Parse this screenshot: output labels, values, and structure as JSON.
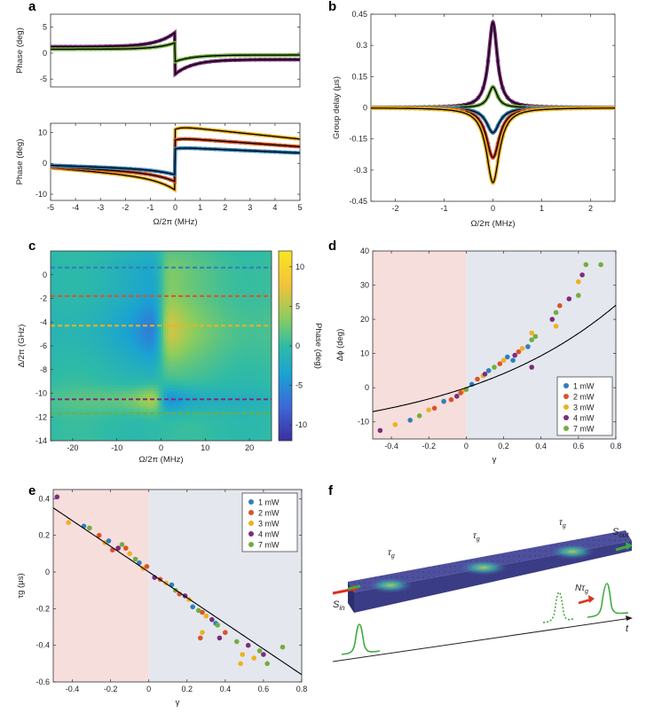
{
  "panel_labels": {
    "a": "a",
    "b": "b",
    "c": "c",
    "d": "d",
    "e": "e",
    "f": "f"
  },
  "colors": {
    "blue": "#2f7fb8",
    "red": "#d9542a",
    "orange": "#ecb21f",
    "purple": "#7b2d7c",
    "green": "#72ad3f",
    "fit": "#000000",
    "shade_red": "#f6dedc",
    "shade_blue": "#e5e7ef",
    "slab": "#4e509e"
  },
  "chart_data": [
    {
      "id": "a_top",
      "type": "line",
      "ylabel": "Phase (deg)",
      "xlim": [
        -5,
        5
      ],
      "ylim": [
        -6.5,
        7.5
      ],
      "yticks": [
        -5,
        0,
        5
      ],
      "series": [
        {
          "color": "purple",
          "amp": 0.62,
          "offset": 0.0
        },
        {
          "color": "green",
          "amp": 0.28,
          "offset": 0.2
        }
      ]
    },
    {
      "id": "a_bottom",
      "type": "line",
      "ylabel": "Phase (deg)",
      "xlabel": "Ω/2π (MHz)",
      "xlim": [
        -5,
        5
      ],
      "ylim": [
        -12,
        13
      ],
      "xticks": [
        -5,
        -4,
        -3,
        -2,
        -1,
        0,
        1,
        2,
        3,
        4,
        5
      ],
      "yticks": [
        -10,
        0,
        10
      ],
      "series": [
        {
          "color": "orange",
          "amp": -1.05,
          "offset": 0.0
        },
        {
          "color": "red",
          "amp": -0.72,
          "offset": 0.0
        },
        {
          "color": "blue",
          "amp": -0.45,
          "offset": 0.0
        }
      ]
    },
    {
      "id": "b",
      "type": "line",
      "ylabel": "Group delay (μs)",
      "xlabel": "Ω/2π (MHz)",
      "xlim": [
        -2.5,
        2.5
      ],
      "ylim": [
        -0.45,
        0.45
      ],
      "xticks": [
        -2,
        -1,
        0,
        1,
        2
      ],
      "yticks": [
        -0.45,
        -0.3,
        -0.15,
        0,
        0.15,
        0.3,
        0.45
      ],
      "ytick_labels": [
        "-0.45",
        "-0.3",
        "-0.15",
        "0",
        "0.15",
        "0.3",
        "0.45"
      ],
      "series": [
        {
          "color": "purple",
          "peak": 0.41
        },
        {
          "color": "green",
          "peak": 0.1
        },
        {
          "color": "blue",
          "peak": -0.12
        },
        {
          "color": "red",
          "peak": -0.24
        },
        {
          "color": "orange",
          "peak": -0.36
        }
      ]
    },
    {
      "id": "c",
      "type": "heatmap",
      "ylabel": "Δ/2π (GHz)",
      "xlabel": "Ω/2π (MHz)",
      "xlim": [
        -25,
        25
      ],
      "ylim": [
        -14,
        2
      ],
      "xticks": [
        -20,
        -10,
        0,
        10,
        20
      ],
      "yticks": [
        -14,
        -12,
        -10,
        -8,
        -6,
        -4,
        -2,
        0
      ],
      "colorbar": {
        "label": "Phase (deg)",
        "range": [
          -12,
          12
        ],
        "ticks": [
          10,
          5,
          0,
          -5,
          -10
        ]
      },
      "dashed_lines": [
        {
          "y": 0.6,
          "color": "blue"
        },
        {
          "y": -1.8,
          "color": "red"
        },
        {
          "y": -4.3,
          "color": "orange"
        },
        {
          "y": -10.5,
          "color": "purple"
        },
        {
          "y": -11.7,
          "color": "green"
        }
      ]
    },
    {
      "id": "d",
      "type": "scatter",
      "ylabel": "Δϕ (deg)",
      "xlabel": "γ",
      "xlim": [
        -0.5,
        0.8
      ],
      "ylim": [
        -15,
        40
      ],
      "xticks": [
        -0.4,
        -0.2,
        0,
        0.2,
        0.4,
        0.6,
        0.8
      ],
      "xtick_labels": [
        "-0.4",
        "-0.2",
        "0",
        "0.2",
        "0.4",
        "0.6",
        "0.8"
      ],
      "yticks": [
        -10,
        0,
        10,
        20,
        30,
        40
      ],
      "legend": {
        "placement": "bottom-right",
        "entries": [
          "1 mW",
          "2 mW",
          "3 mW",
          "4 mW",
          "7 mW"
        ]
      },
      "points": [
        [
          -0.46,
          -12.5,
          "purple"
        ],
        [
          -0.38,
          -10.8,
          "orange"
        ],
        [
          -0.3,
          -9.5,
          "blue"
        ],
        [
          -0.25,
          -8.2,
          "green"
        ],
        [
          -0.2,
          -6.5,
          "orange"
        ],
        [
          -0.17,
          -6.0,
          "red"
        ],
        [
          -0.12,
          -4.0,
          "blue"
        ],
        [
          -0.08,
          -3.5,
          "red"
        ],
        [
          -0.05,
          -2.5,
          "purple"
        ],
        [
          -0.02,
          -1.0,
          "orange"
        ],
        [
          0.0,
          -0.5,
          "green"
        ],
        [
          0.03,
          1.0,
          "blue"
        ],
        [
          0.06,
          2.5,
          "red"
        ],
        [
          0.09,
          3.5,
          "orange"
        ],
        [
          0.12,
          5.0,
          "blue"
        ],
        [
          0.15,
          6.0,
          "green"
        ],
        [
          0.18,
          7.0,
          "red"
        ],
        [
          0.2,
          8.0,
          "orange"
        ],
        [
          0.22,
          9.0,
          "blue"
        ],
        [
          0.26,
          9.5,
          "purple"
        ],
        [
          0.28,
          10.5,
          "red"
        ],
        [
          0.3,
          11.5,
          "orange"
        ],
        [
          0.33,
          12.0,
          "blue"
        ],
        [
          0.35,
          14.0,
          "green"
        ],
        [
          0.35,
          16.0,
          "orange"
        ],
        [
          0.37,
          15.0,
          "green"
        ],
        [
          0.35,
          6.0,
          "purple"
        ],
        [
          0.46,
          20.0,
          "purple"
        ],
        [
          0.48,
          22.0,
          "green"
        ],
        [
          0.5,
          24.0,
          "red"
        ],
        [
          0.48,
          18.0,
          "orange"
        ],
        [
          0.55,
          26.0,
          "purple"
        ],
        [
          0.6,
          27.0,
          "green"
        ],
        [
          0.6,
          31.0,
          "orange"
        ],
        [
          0.62,
          33.0,
          "purple"
        ],
        [
          0.64,
          36.0,
          "green"
        ],
        [
          0.72,
          36.0,
          "green"
        ],
        [
          0.25,
          8.0,
          "blue"
        ],
        [
          0.1,
          4.0,
          "purple"
        ],
        [
          -0.03,
          -1.5,
          "red"
        ]
      ]
    },
    {
      "id": "e",
      "type": "scatter",
      "ylabel": "τg (μs)",
      "xlabel": "γ",
      "xlim": [
        -0.5,
        0.8
      ],
      "ylim": [
        -0.6,
        0.45
      ],
      "xticks": [
        -0.4,
        -0.2,
        0,
        0.2,
        0.4,
        0.6,
        0.8
      ],
      "xtick_labels": [
        "-0.4",
        "-0.2",
        "0",
        "0.2",
        "0.4",
        "0.6",
        "0.8"
      ],
      "yticks": [
        -0.6,
        -0.4,
        -0.2,
        0,
        0.2,
        0.4
      ],
      "ytick_labels": [
        "-0.6",
        "-0.4",
        "-0.2",
        "0",
        "0.2",
        "0.4"
      ],
      "legend": {
        "placement": "top-right",
        "entries": [
          "1 mW",
          "2 mW",
          "3 mW",
          "4 mW",
          "7 mW"
        ]
      },
      "points": [
        [
          -0.48,
          0.41,
          "purple"
        ],
        [
          -0.42,
          0.27,
          "orange"
        ],
        [
          -0.34,
          0.25,
          "blue"
        ],
        [
          -0.31,
          0.24,
          "green"
        ],
        [
          -0.26,
          0.2,
          "red"
        ],
        [
          -0.23,
          0.16,
          "orange"
        ],
        [
          -0.21,
          0.17,
          "blue"
        ],
        [
          -0.19,
          0.12,
          "red"
        ],
        [
          -0.16,
          0.13,
          "purple"
        ],
        [
          -0.14,
          0.15,
          "green"
        ],
        [
          -0.12,
          0.13,
          "red"
        ],
        [
          -0.1,
          0.1,
          "orange"
        ],
        [
          -0.07,
          0.07,
          "green"
        ],
        [
          -0.05,
          0.05,
          "blue"
        ],
        [
          -0.03,
          0.02,
          "orange"
        ],
        [
          -0.01,
          0.03,
          "red"
        ],
        [
          0.03,
          -0.03,
          "purple"
        ],
        [
          0.06,
          -0.04,
          "red"
        ],
        [
          0.09,
          -0.06,
          "orange"
        ],
        [
          0.12,
          -0.07,
          "blue"
        ],
        [
          0.14,
          -0.1,
          "green"
        ],
        [
          0.16,
          -0.12,
          "red"
        ],
        [
          0.19,
          -0.13,
          "purple"
        ],
        [
          0.21,
          -0.15,
          "orange"
        ],
        [
          0.23,
          -0.19,
          "blue"
        ],
        [
          0.26,
          -0.21,
          "green"
        ],
        [
          0.28,
          -0.22,
          "red"
        ],
        [
          0.3,
          -0.24,
          "orange"
        ],
        [
          0.33,
          -0.26,
          "purple"
        ],
        [
          0.35,
          -0.28,
          "blue"
        ],
        [
          0.28,
          -0.33,
          "orange"
        ],
        [
          0.27,
          -0.36,
          "red"
        ],
        [
          0.37,
          -0.36,
          "purple"
        ],
        [
          0.36,
          -0.29,
          "green"
        ],
        [
          0.46,
          -0.38,
          "green"
        ],
        [
          0.49,
          -0.45,
          "orange"
        ],
        [
          0.48,
          -0.5,
          "orange"
        ],
        [
          0.52,
          -0.4,
          "purple"
        ],
        [
          0.58,
          -0.43,
          "green"
        ],
        [
          0.6,
          -0.45,
          "purple"
        ],
        [
          0.62,
          -0.5,
          "green"
        ],
        [
          0.7,
          -0.41,
          "green"
        ],
        [
          0.55,
          -0.47,
          "orange"
        ],
        [
          0.4,
          -0.33,
          "red"
        ]
      ]
    }
  ],
  "panel_f": {
    "tau_label": "τ",
    "tau_sub": "g",
    "s_in": "S",
    "s_in_sub": "in",
    "s_out": "S",
    "s_out_sub": "out",
    "n_tau": "Nτ",
    "n_tau_sub": "g",
    "t_label": "t"
  }
}
